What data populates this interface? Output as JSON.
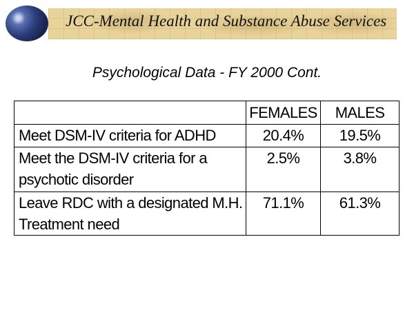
{
  "header": {
    "title": "JCC-Mental Health and Substance Abuse Services",
    "logo": "globe-icon"
  },
  "subtitle": "Psychological Data - FY 2000 Cont.",
  "table": {
    "columns": [
      "",
      "FEMALES",
      "MALES"
    ],
    "rows": [
      {
        "label": "Meet DSM-IV criteria for ADHD",
        "females": "20.4%",
        "males": "19.5%"
      },
      {
        "label": "Meet the DSM-IV criteria for a psychotic disorder",
        "females": "2.5%",
        "males": "3.8%"
      },
      {
        "label": "Leave RDC with a designated M.H. Treatment need",
        "females": "71.1%",
        "males": "61.3%"
      }
    ]
  }
}
